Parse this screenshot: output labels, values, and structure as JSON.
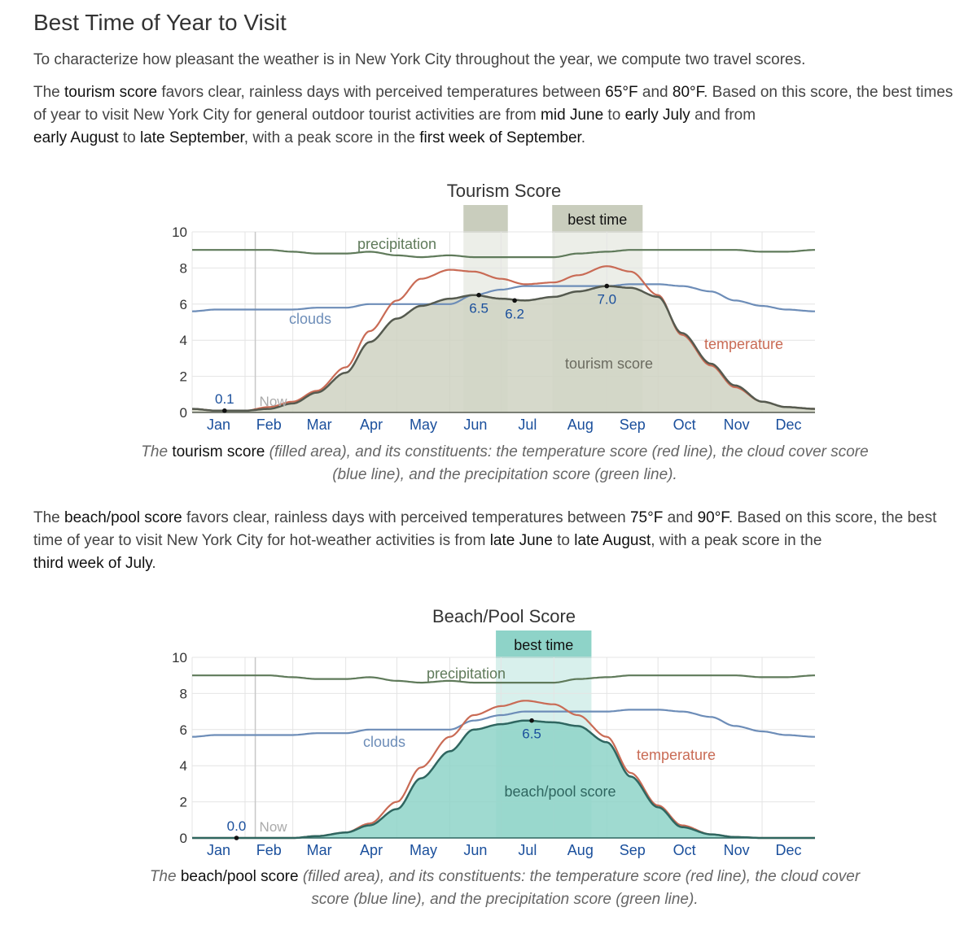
{
  "page": {
    "title": "Best Time of Year to Visit",
    "intro": "To characterize how pleasant the weather is in New York City throughout the year, we compute two travel scores."
  },
  "tourism_desc": {
    "p1": "The ",
    "h1": "tourism score",
    "p2": " favors clear, rainless days with perceived temperatures between ",
    "h2": "65°F",
    "p3": " and ",
    "h3": "80°F",
    "p4": ". Based on this score, the best times of year to visit New York City for general outdoor tourist activities are from ",
    "h4": "mid June",
    "p5": " to ",
    "h5": "early July",
    "p6": " and from ",
    "h6": "early August",
    "p7": " to ",
    "h7": "late September",
    "p8": ", with a peak score in the ",
    "h8": "first week of September",
    "p9": "."
  },
  "tourism_caption": {
    "p1": "The ",
    "h1": "tourism score",
    "p2": " (filled area), and its constituents: the temperature score (red line), the cloud cover score (blue line), and the precipitation score (green line)."
  },
  "beach_desc": {
    "p1": "The ",
    "h1": "beach/pool score",
    "p2": " favors clear, rainless days with perceived temperatures between ",
    "h2": "75°F",
    "p3": " and ",
    "h3": "90°F",
    "p4": ". Based on this score, the best time of year to visit New York City for hot-weather activities is from ",
    "h4": "late June",
    "p5": " to ",
    "h5": "late August",
    "p6": ", with a peak score in the ",
    "h6": "third week of July",
    "p7": "."
  },
  "beach_caption": {
    "p1": "The ",
    "h1": "beach/pool score",
    "p2": " (filled area), and its constituents: the temperature score (red line), the cloud cover score (blue line), and the precipitation score (green line)."
  },
  "colors": {
    "precipitation": "#5f7a5a",
    "clouds": "#6d8db8",
    "temperature": "#c96b55",
    "tourism_fill": "#cfd2c2",
    "tourism_line": "#555a4f",
    "tourism_best": "#c9cdbd",
    "beach_fill": "#8ed3c8",
    "beach_line": "#2f6660",
    "beach_best": "#8ed3c8",
    "point_label": "#1a4f9c",
    "now": "#aaaaaa"
  },
  "chart_data": [
    {
      "type": "area",
      "title": "Tourism Score",
      "ylim": [
        0,
        10
      ],
      "yticks": [
        "0",
        "2",
        "4",
        "6",
        "8",
        "10"
      ],
      "xlim": [
        1,
        366
      ],
      "months": [
        "Jan",
        "Feb",
        "Mar",
        "Apr",
        "May",
        "Jun",
        "Jul",
        "Aug",
        "Sep",
        "Oct",
        "Nov",
        "Dec"
      ],
      "grid": true,
      "now_day": 38,
      "now_label": "Now",
      "best_label": "best time",
      "best_ranges": [
        [
          160,
          186
        ],
        [
          212,
          265
        ]
      ],
      "score_label": "tourism score",
      "score_key": "tourism",
      "series": [
        {
          "name": "precipitation",
          "days": [
            1,
            15,
            32,
            46,
            60,
            74,
            91,
            105,
            121,
            135,
            152,
            166,
            182,
            196,
            213,
            227,
            244,
            258,
            274,
            288,
            305,
            319,
            335,
            349,
            366
          ],
          "values": [
            9.0,
            9.0,
            9.0,
            9.0,
            8.9,
            8.8,
            8.8,
            8.9,
            8.7,
            8.6,
            8.7,
            8.6,
            8.6,
            8.6,
            8.6,
            8.8,
            8.9,
            9.0,
            9.0,
            9.0,
            9.0,
            9.0,
            8.9,
            8.9,
            9.0
          ]
        },
        {
          "name": "clouds",
          "days": [
            1,
            15,
            32,
            46,
            60,
            74,
            91,
            105,
            121,
            135,
            152,
            166,
            182,
            196,
            213,
            227,
            244,
            258,
            274,
            288,
            305,
            319,
            335,
            349,
            366
          ],
          "values": [
            5.6,
            5.7,
            5.7,
            5.7,
            5.7,
            5.8,
            5.8,
            6.0,
            6.0,
            6.0,
            6.0,
            6.5,
            6.8,
            7.0,
            7.0,
            7.0,
            7.0,
            7.1,
            7.1,
            7.0,
            6.7,
            6.2,
            5.9,
            5.7,
            5.6
          ]
        },
        {
          "name": "temperature",
          "days": [
            1,
            15,
            32,
            46,
            60,
            74,
            91,
            105,
            121,
            135,
            152,
            166,
            182,
            196,
            213,
            227,
            244,
            258,
            274,
            288,
            305,
            319,
            335,
            349,
            366
          ],
          "values": [
            0.2,
            0.1,
            0.1,
            0.3,
            0.6,
            1.2,
            2.5,
            4.5,
            6.2,
            7.4,
            7.9,
            7.8,
            7.4,
            7.1,
            7.2,
            7.6,
            8.1,
            7.8,
            6.5,
            4.3,
            2.6,
            1.4,
            0.6,
            0.3,
            0.2
          ]
        },
        {
          "name": "tourism score",
          "days": [
            1,
            15,
            32,
            46,
            60,
            74,
            91,
            105,
            121,
            135,
            152,
            166,
            182,
            196,
            213,
            227,
            244,
            258,
            274,
            288,
            305,
            319,
            335,
            349,
            366
          ],
          "values": [
            0.2,
            0.1,
            0.1,
            0.2,
            0.5,
            1.1,
            2.2,
            3.9,
            5.2,
            5.9,
            6.3,
            6.5,
            6.3,
            6.2,
            6.4,
            6.7,
            7.0,
            6.9,
            6.4,
            4.4,
            2.7,
            1.5,
            0.6,
            0.3,
            0.2
          ]
        }
      ],
      "point_labels": [
        {
          "day": 20,
          "value": 0.1,
          "text": "0.1"
        },
        {
          "day": 169,
          "value": 6.5,
          "text": "6.5"
        },
        {
          "day": 190,
          "value": 6.2,
          "text": "6.2"
        },
        {
          "day": 244,
          "value": 7.0,
          "text": "7.0"
        }
      ]
    },
    {
      "type": "area",
      "title": "Beach/Pool Score",
      "ylim": [
        0,
        10
      ],
      "yticks": [
        "0",
        "2",
        "4",
        "6",
        "8",
        "10"
      ],
      "xlim": [
        1,
        366
      ],
      "months": [
        "Jan",
        "Feb",
        "Mar",
        "Apr",
        "May",
        "Jun",
        "Jul",
        "Aug",
        "Sep",
        "Oct",
        "Nov",
        "Dec"
      ],
      "grid": true,
      "now_day": 38,
      "now_label": "Now",
      "best_label": "best time",
      "best_ranges": [
        [
          179,
          235
        ]
      ],
      "score_label": "beach/pool score",
      "score_key": "beach",
      "series": [
        {
          "name": "precipitation",
          "days": [
            1,
            15,
            32,
            46,
            60,
            74,
            91,
            105,
            121,
            135,
            152,
            166,
            182,
            196,
            213,
            227,
            244,
            258,
            274,
            288,
            305,
            319,
            335,
            349,
            366
          ],
          "values": [
            9.0,
            9.0,
            9.0,
            9.0,
            8.9,
            8.8,
            8.8,
            8.9,
            8.7,
            8.6,
            8.7,
            8.6,
            8.6,
            8.6,
            8.6,
            8.8,
            8.9,
            9.0,
            9.0,
            9.0,
            9.0,
            9.0,
            8.9,
            8.9,
            9.0
          ]
        },
        {
          "name": "clouds",
          "days": [
            1,
            15,
            32,
            46,
            60,
            74,
            91,
            105,
            121,
            135,
            152,
            166,
            182,
            196,
            213,
            227,
            244,
            258,
            274,
            288,
            305,
            319,
            335,
            349,
            366
          ],
          "values": [
            5.6,
            5.7,
            5.7,
            5.7,
            5.7,
            5.8,
            5.8,
            6.0,
            6.0,
            6.0,
            6.0,
            6.5,
            6.8,
            7.0,
            7.0,
            7.0,
            7.0,
            7.1,
            7.1,
            7.0,
            6.7,
            6.2,
            5.9,
            5.7,
            5.6
          ]
        },
        {
          "name": "temperature",
          "days": [
            1,
            15,
            32,
            46,
            60,
            74,
            91,
            105,
            121,
            135,
            152,
            166,
            182,
            196,
            213,
            227,
            244,
            258,
            274,
            288,
            305,
            319,
            335,
            349,
            366
          ],
          "values": [
            0.0,
            0.0,
            0.0,
            0.0,
            0.0,
            0.1,
            0.3,
            0.8,
            2.0,
            3.9,
            5.6,
            6.8,
            7.3,
            7.6,
            7.4,
            6.8,
            5.6,
            3.6,
            1.8,
            0.7,
            0.2,
            0.05,
            0.0,
            0.0,
            0.0
          ]
        },
        {
          "name": "beach/pool score",
          "days": [
            1,
            15,
            32,
            46,
            60,
            74,
            91,
            105,
            121,
            135,
            152,
            166,
            182,
            196,
            213,
            227,
            244,
            258,
            274,
            288,
            305,
            319,
            335,
            349,
            366
          ],
          "values": [
            0.0,
            0.0,
            0.0,
            0.0,
            0.0,
            0.1,
            0.3,
            0.7,
            1.6,
            3.3,
            4.8,
            6.0,
            6.3,
            6.5,
            6.4,
            6.2,
            5.3,
            3.4,
            1.7,
            0.6,
            0.2,
            0.05,
            0.0,
            0.0,
            0.0
          ]
        }
      ],
      "point_labels": [
        {
          "day": 27,
          "value": 0.0,
          "text": "0.0"
        },
        {
          "day": 200,
          "value": 6.5,
          "text": "6.5"
        }
      ]
    }
  ]
}
